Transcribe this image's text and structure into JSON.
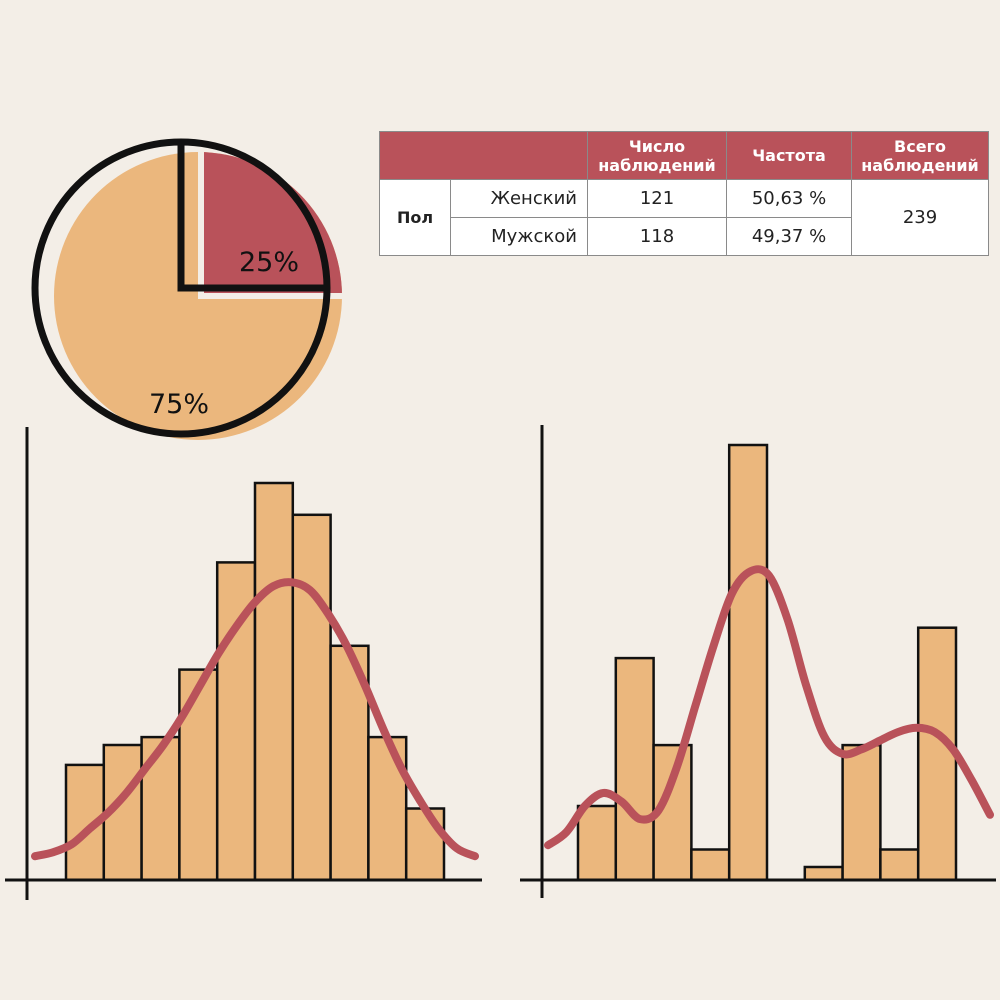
{
  "colors": {
    "background": "#f3eee7",
    "accent": "#b9525a",
    "bar_fill": "#ebb77d",
    "outline": "#111111",
    "table_header": "#b9525a",
    "table_header_text": "#ffffff"
  },
  "table": {
    "headers": [
      "Число наблюдений",
      "Частота",
      "Всего наблюдений"
    ],
    "group_label": "Пол",
    "rows": [
      {
        "category": "Женский",
        "count": "121",
        "frequency": "50,63 %"
      },
      {
        "category": "Мужской",
        "count": "118",
        "frequency": "49,37 %"
      }
    ],
    "total": "239"
  },
  "chart_data": [
    {
      "type": "pie",
      "slices": [
        {
          "label": "25%",
          "value": 25,
          "color": "#b9525a"
        },
        {
          "label": "75%",
          "value": 75,
          "color": "#ebb77d"
        }
      ]
    },
    {
      "type": "bar",
      "ylim": [
        0,
        100
      ],
      "values": [
        29,
        34,
        36,
        53,
        80,
        100,
        92,
        59,
        36,
        18
      ],
      "curve": [
        6,
        7,
        9,
        13,
        17,
        22,
        28,
        34,
        41,
        49,
        57,
        64,
        70,
        74,
        75,
        73,
        67,
        59,
        49,
        38,
        28,
        20,
        13,
        8,
        6
      ],
      "grid": false,
      "legend": "none"
    },
    {
      "type": "bar",
      "ylim": [
        0,
        100
      ],
      "values": [
        17,
        51,
        31,
        7,
        100,
        0,
        3,
        31,
        7,
        58
      ],
      "curve": [
        8,
        11,
        17,
        20,
        18,
        14,
        16,
        26,
        40,
        54,
        66,
        71,
        70,
        60,
        45,
        33,
        29,
        30,
        32,
        34,
        35,
        34,
        30,
        23,
        15
      ],
      "grid": false,
      "legend": "none"
    }
  ]
}
